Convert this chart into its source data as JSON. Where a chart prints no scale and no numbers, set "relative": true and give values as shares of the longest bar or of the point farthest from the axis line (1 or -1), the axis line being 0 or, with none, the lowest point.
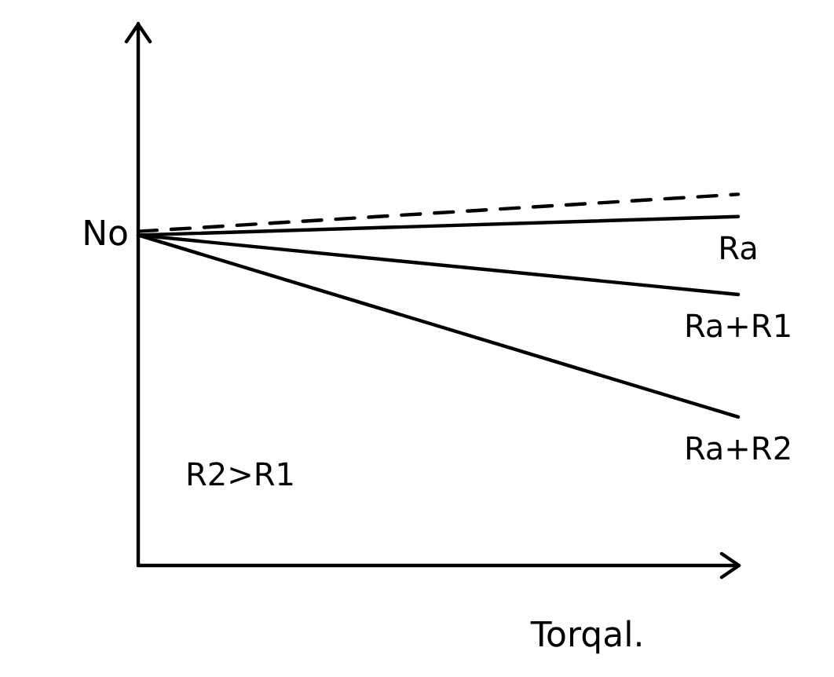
{
  "chart_data": {
    "type": "line",
    "relative": true,
    "xlabel": "Torqal.",
    "categories": [
      null,
      null
    ],
    "series": [
      {
        "color": "#000000",
        "values": [
          0.9,
          1.0
        ],
        "line_style": "dashed"
      },
      {
        "name": "Ra",
        "color": "#000000",
        "values": [
          0.89,
          0.94
        ]
      },
      {
        "name": "Ra+R1",
        "color": "#000000",
        "values": [
          0.89,
          0.73
        ]
      },
      {
        "name": "Ra+R2",
        "color": "#000000",
        "values": [
          0.89,
          0.4
        ]
      }
    ],
    "annotations": [
      "No",
      "R2>R1"
    ],
    "marker": "none",
    "line_style": "solid",
    "grid": false,
    "legend": false
  }
}
